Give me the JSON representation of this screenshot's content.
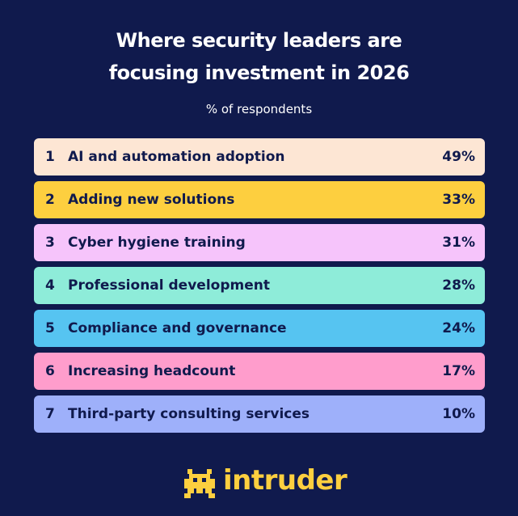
{
  "header": {
    "title_lines": [
      "Where security leaders are",
      "focusing investment in 2026"
    ],
    "subtitle": "% of respondents"
  },
  "list": {
    "rows": [
      {
        "rank": "1",
        "label": "AI and automation adoption",
        "value": "49%",
        "color": "#fde6d4"
      },
      {
        "rank": "2",
        "label": "Adding new solutions",
        "value": "33%",
        "color": "#fdcf3f"
      },
      {
        "rank": "3",
        "label": "Cyber hygiene training",
        "value": "31%",
        "color": "#f6c4fb"
      },
      {
        "rank": "4",
        "label": "Professional development",
        "value": "28%",
        "color": "#8eecd9"
      },
      {
        "rank": "5",
        "label": "Compliance and governance",
        "value": "24%",
        "color": "#56c4f1"
      },
      {
        "rank": "6",
        "label": "Increasing headcount",
        "value": "17%",
        "color": "#ff9dcc"
      },
      {
        "rank": "7",
        "label": "Third-party consulting services",
        "value": "10%",
        "color": "#9eb0fa"
      }
    ]
  },
  "footer": {
    "brand": "intruder"
  }
}
